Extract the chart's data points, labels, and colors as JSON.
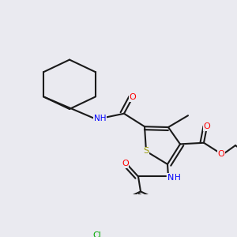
{
  "bg_color": "#eaeaf0",
  "bond_color": "#1a1a1a",
  "atom_colors": {
    "O": "#ff0000",
    "N": "#0000ff",
    "S": "#999900",
    "Cl": "#00aa00",
    "C": "#000000"
  },
  "figsize": [
    3.0,
    3.0
  ],
  "dpi": 100
}
